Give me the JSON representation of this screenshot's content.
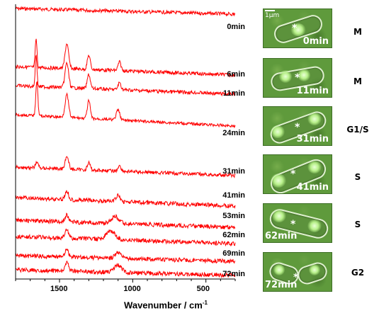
{
  "chart_data": {
    "type": "line",
    "xlabel": "Wavenumber / cm",
    "xlabel_sup": "-1",
    "xlim": [
      1800,
      300
    ],
    "x_ticks": [
      1500,
      1000,
      500
    ],
    "series": [
      {
        "name": "0min"
      },
      {
        "name": "6min"
      },
      {
        "name": "11min"
      },
      {
        "name": "24min"
      },
      {
        "name": "31min"
      },
      {
        "name": "41min"
      },
      {
        "name": "53min"
      },
      {
        "name": "62min"
      },
      {
        "name": "69min"
      },
      {
        "name": "72min"
      }
    ],
    "line_color": "#ff0000"
  },
  "cells": [
    {
      "time": "0min",
      "phase": "M",
      "scale": "1μm"
    },
    {
      "time": "11min",
      "phase": "M"
    },
    {
      "time": "31min",
      "phase": "G1/S"
    },
    {
      "time": "41min",
      "phase": "S"
    },
    {
      "time": "62min",
      "phase": "S"
    },
    {
      "time": "72min",
      "phase": "G2"
    }
  ]
}
